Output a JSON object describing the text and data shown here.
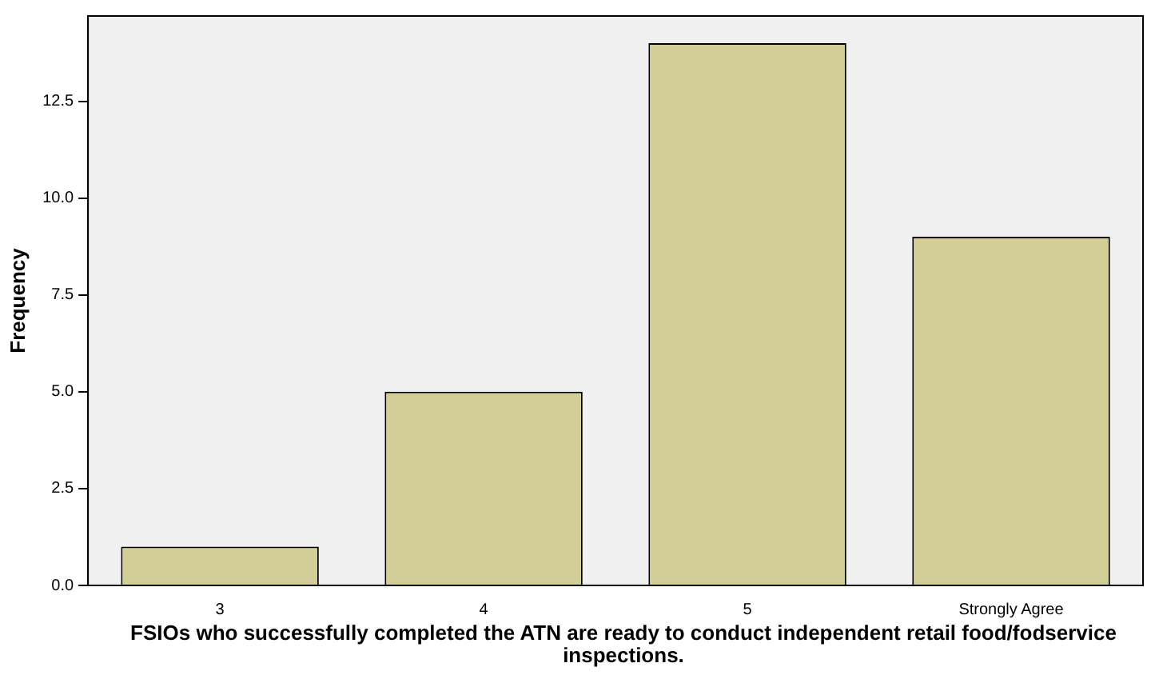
{
  "chart_data": {
    "type": "bar",
    "xlabel": "FSIOs who successfully completed the ATN are ready to conduct independent retail food/fodservice inspections.",
    "ylabel": "Frequency",
    "categories": [
      "3",
      "4",
      "5",
      "Strongly Agree"
    ],
    "values": [
      1,
      5,
      14,
      9
    ],
    "color": "#d3ce97",
    "ylim": [
      0,
      14.7
    ],
    "yticks": [
      {
        "value": 0,
        "label": "0.0"
      },
      {
        "value": 2.5,
        "label": "2.5"
      },
      {
        "value": 5,
        "label": "5.0"
      },
      {
        "value": 7.5,
        "label": "7.5"
      },
      {
        "value": 10,
        "label": "10.0"
      },
      {
        "value": 12.5,
        "label": "12.5"
      }
    ],
    "grid": false,
    "legend": false
  }
}
